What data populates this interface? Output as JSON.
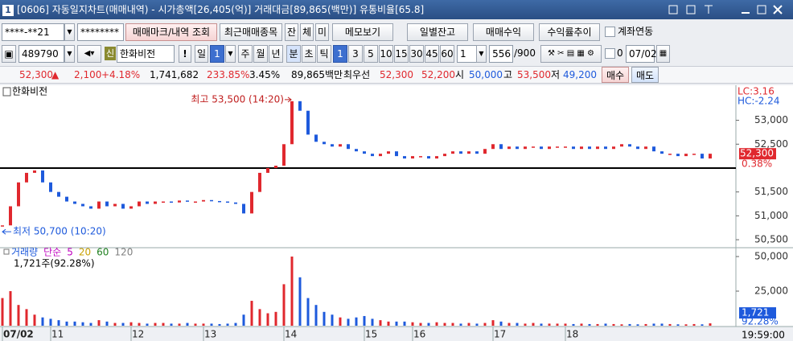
{
  "window": {
    "number": "1",
    "title": "[0606] 자동일지차트(매매내역) - 시가총액[26,405(억)] 거래대금[89,865(백만)] 유통비율[65.8]"
  },
  "toolbar1": {
    "account": "****-**21",
    "password": "********",
    "buttons": [
      "매매마크/내역 조회",
      "최근매매종목",
      "잔",
      "체",
      "미",
      "메모보기",
      "일별잔고",
      "매매수익",
      "수익률추이"
    ],
    "checkbox": "계좌연동"
  },
  "toolbar2": {
    "code": "489790",
    "badge": "신",
    "name": "한화비전",
    "alert": "!",
    "period": "일",
    "period_n": "1",
    "periods": [
      "주",
      "월",
      "년",
      "분",
      "초",
      "틱"
    ],
    "intervals": [
      "1",
      "3",
      "5",
      "10",
      "15",
      "30",
      "45",
      "60"
    ],
    "interval_n": "1",
    "count": "556",
    "count_max": "/900",
    "option": "0",
    "date": "07/02"
  },
  "quote": {
    "price": "52,300",
    "arrow": "▲",
    "change": "2,100",
    "change_pct": "+4.18%",
    "volume": "1,741,682",
    "vol_ratio": "233.85%",
    "turnover": "3.45%",
    "amount": "89,865백만",
    "best_label": "최우선",
    "ask": "52,300",
    "bid": "52,200",
    "open_label": "시",
    "open": "50,000",
    "high_label": "고",
    "high": "53,500",
    "low_label": "저",
    "low": "49,200",
    "buy": "매수",
    "sell": "매도"
  },
  "chart_data": [
    {
      "type": "candle",
      "title": "한화비전",
      "up_color": "#e0282e",
      "down_color": "#1e5adc",
      "values": [
        50800,
        51200,
        51700,
        51900,
        51950,
        51700,
        51500,
        51400,
        51300,
        51250,
        51200,
        51150,
        51300,
        51200,
        51250,
        51150,
        51200,
        51300,
        51250,
        51300,
        51300,
        51280,
        51320,
        51300,
        51300,
        51330,
        51310,
        51300,
        51280,
        51250,
        51050,
        51500,
        51900,
        52000,
        52050,
        52500,
        53400,
        53200,
        52700,
        52550,
        52500,
        52450,
        52500,
        52400,
        52350,
        52300,
        52250,
        52300,
        52350,
        52250,
        52200,
        52250,
        52250,
        52200,
        52250,
        52300,
        52350,
        52300,
        52350,
        52300,
        52400,
        52500,
        52400,
        52450,
        52400,
        52450,
        52450,
        52400,
        52450,
        52450,
        52450,
        52400,
        52450,
        52400,
        52450,
        52400,
        52450,
        52500,
        52450,
        52400,
        52450,
        52350,
        52300,
        52300,
        52250,
        52300,
        52300,
        52200,
        52300
      ],
      "xlim": [
        0,
        91
      ],
      "xticks": [
        {
          "value": 0,
          "label": "07/02"
        },
        {
          "value": 6,
          "label": "11"
        },
        {
          "value": 16,
          "label": "12"
        },
        {
          "value": 25,
          "label": "13"
        },
        {
          "value": 35,
          "label": "14"
        },
        {
          "value": 45,
          "label": "15"
        },
        {
          "value": 51,
          "label": "16"
        },
        {
          "value": 61,
          "label": "17"
        },
        {
          "value": 70,
          "label": "18"
        }
      ],
      "ylim": [
        50400,
        53700
      ],
      "yticks": [
        {
          "value": 53000,
          "label": "53,000"
        },
        {
          "value": 52500,
          "label": "52,500"
        },
        {
          "value": 51500,
          "label": "51,500"
        },
        {
          "value": 51000,
          "label": "51,000"
        },
        {
          "value": 50500,
          "label": "50,500"
        }
      ],
      "reference_line": 52000,
      "last": {
        "value": 52300,
        "label": "52,300"
      },
      "last_pct": "0.38%",
      "lc": "LC:3.16",
      "hc": "HC:-2.24",
      "annotations": [
        {
          "text": "최고 53,500 (14:20)",
          "index": 36,
          "value": 53500
        },
        {
          "text": "최저 50,700 (10:20)",
          "index": 0,
          "value": 50700
        }
      ],
      "end_time": "19:59:00"
    },
    {
      "type": "bar",
      "current": "1,721주(92.28%)",
      "legend": [
        {
          "name": "거래량",
          "color": "#1e5adc"
        },
        {
          "name": "단순",
          "color": "#c000c0"
        },
        {
          "name": "5",
          "color": "#c000c0"
        },
        {
          "name": "20",
          "color": "#c8a000"
        },
        {
          "name": "60",
          "color": "#208020"
        },
        {
          "name": "120",
          "color": "#808080"
        }
      ],
      "values": [
        20000,
        25000,
        15000,
        12000,
        8000,
        6000,
        5000,
        4000,
        3000,
        3000,
        2500,
        2000,
        4000,
        3000,
        2000,
        2000,
        2500,
        2000,
        1500,
        2000,
        2000,
        1500,
        1500,
        2000,
        1500,
        1500,
        1500,
        1200,
        1500,
        2000,
        8000,
        18000,
        12000,
        9000,
        10000,
        30000,
        50000,
        35000,
        20000,
        15000,
        10000,
        8000,
        6000,
        5000,
        6000,
        7000,
        5000,
        4000,
        3000,
        3000,
        3000,
        2500,
        2000,
        2000,
        2500,
        2000,
        2000,
        1500,
        2000,
        1500,
        2000,
        4000,
        3000,
        2000,
        2000,
        1500,
        2000,
        1500,
        1500,
        1500,
        1500,
        1200,
        1500,
        1200,
        1200,
        1500,
        1200,
        1000,
        1200,
        1000,
        1200,
        1500,
        1500,
        1200,
        1000,
        1000,
        1200,
        1000,
        1721
      ],
      "ylim": [
        0,
        55000
      ],
      "yticks": [
        {
          "value": 50000,
          "label": "50,000"
        },
        {
          "value": 25000,
          "label": "25,000"
        }
      ],
      "last": {
        "value": 1721,
        "label": "1,721"
      },
      "last_pct": "92.28%"
    }
  ]
}
